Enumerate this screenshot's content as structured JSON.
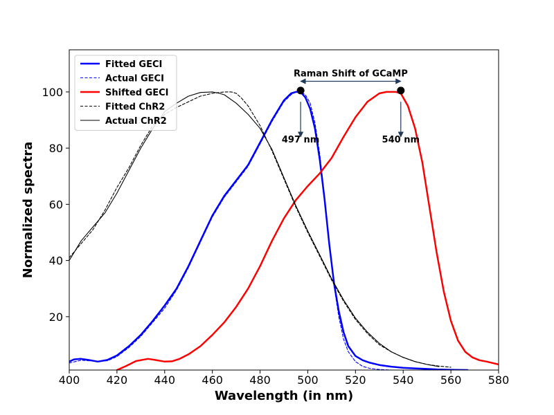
{
  "chart_data": {
    "type": "line",
    "title": "",
    "xlabel": "Wavelength (in nm)",
    "ylabel": "Normalized spectra",
    "xlim": [
      400,
      580
    ],
    "ylim": [
      1,
      115
    ],
    "x_ticks": [
      400,
      420,
      440,
      460,
      480,
      500,
      520,
      540,
      560,
      580
    ],
    "y_ticks": [
      20,
      40,
      60,
      80,
      100
    ],
    "grid": false,
    "legend_position": "top-left",
    "series": [
      {
        "name": "Fitted GECI",
        "color": "#0000ff",
        "style": "solid",
        "emphasis": "thick",
        "x": [
          400,
          402,
          405,
          408,
          412,
          416,
          420,
          425,
          430,
          435,
          440,
          445,
          450,
          455,
          460,
          465,
          470,
          475,
          480,
          485,
          490,
          493,
          495,
          497,
          499,
          501,
          503,
          505,
          507,
          509,
          511,
          513,
          515,
          517,
          520,
          523,
          526,
          530,
          535,
          540,
          545,
          550,
          555,
          560,
          567
        ],
        "y": [
          4,
          4.8,
          5,
          4.6,
          4,
          4.6,
          6.2,
          9.5,
          13.5,
          18.5,
          24,
          30,
          38,
          47,
          56,
          63,
          68.5,
          74,
          82,
          90,
          97,
          99.5,
          100,
          100,
          98,
          94,
          87,
          76,
          62,
          46,
          32,
          22,
          14.5,
          9.5,
          6,
          4.5,
          3.6,
          2.8,
          2.2,
          1.8,
          1.6,
          1.4,
          1.2,
          1.1,
          1
        ]
      },
      {
        "name": "Actual GECI",
        "color": "#0000ff",
        "style": "dashed",
        "emphasis": "thin",
        "x": [
          400,
          405,
          408,
          412,
          416,
          420,
          425,
          430,
          435,
          440,
          445,
          450,
          455,
          460,
          465,
          470,
          475,
          480,
          485,
          490,
          493,
          495,
          497,
          499,
          501,
          503,
          505,
          507,
          509,
          511,
          513,
          515,
          517,
          520,
          523,
          526,
          530,
          535
        ],
        "y": [
          3.5,
          4.5,
          4.3,
          4.1,
          4.3,
          5.8,
          9,
          13,
          18,
          23,
          29.5,
          37.5,
          46.5,
          55.5,
          62.5,
          68,
          73.5,
          81.5,
          89.5,
          96.5,
          99,
          100,
          100,
          99,
          96,
          89,
          78,
          63,
          46,
          31,
          20,
          12,
          7.5,
          4,
          2.3,
          1.6,
          1.2,
          1
        ]
      },
      {
        "name": "Shifted GECI",
        "color": "#ff0000",
        "style": "solid",
        "emphasis": "thick",
        "x": [
          420,
          424,
          428,
          433,
          436,
          440,
          443,
          446,
          450,
          455,
          460,
          465,
          470,
          475,
          480,
          485,
          490,
          495,
          500,
          505,
          510,
          515,
          520,
          525,
          530,
          533,
          535,
          537,
          539,
          540,
          542,
          545,
          548,
          551,
          554,
          557,
          560,
          563,
          566,
          569,
          572,
          575,
          580
        ],
        "y": [
          1,
          2.5,
          4.2,
          5,
          4.6,
          4,
          4.1,
          4.9,
          6.6,
          9.5,
          13.5,
          18,
          23.5,
          30,
          38,
          47,
          55,
          61.5,
          66.5,
          71,
          76.5,
          84,
          91,
          96.5,
          99.5,
          100,
          100,
          100,
          99.5,
          98,
          95,
          87,
          75,
          59,
          43,
          29,
          18.5,
          11.5,
          7.5,
          5.5,
          4.5,
          4,
          3
        ]
      },
      {
        "name": "Fitted ChR2",
        "color": "#000000",
        "style": "dashed",
        "emphasis": "thin",
        "x": [
          400,
          405,
          410,
          415,
          420,
          425,
          430,
          435,
          440,
          445,
          450,
          455,
          460,
          465,
          468,
          470,
          472,
          475,
          480,
          485,
          490,
          495,
          500,
          505,
          510,
          515,
          520,
          525,
          530,
          535,
          540,
          545,
          550,
          555,
          560
        ],
        "y": [
          41,
          46,
          51,
          58,
          66,
          73,
          81,
          88,
          92,
          94.5,
          96.5,
          98.5,
          99.5,
          100,
          100,
          99.5,
          98,
          95,
          88,
          79,
          69,
          59,
          50,
          41.5,
          33,
          25.5,
          19,
          14,
          10,
          7.5,
          5.5,
          4,
          3,
          2.4,
          2
        ]
      },
      {
        "name": "Actual ChR2",
        "color": "#000000",
        "style": "solid",
        "emphasis": "thin",
        "x": [
          400,
          405,
          410,
          415,
          420,
          425,
          430,
          435,
          440,
          445,
          450,
          455,
          460,
          463,
          465,
          470,
          475,
          480,
          485,
          490,
          495,
          500,
          505,
          510,
          515,
          520,
          525,
          530,
          535,
          540,
          545,
          550,
          555
        ],
        "y": [
          40,
          47,
          52,
          57,
          64,
          72,
          80,
          87,
          93,
          96,
          98.5,
          99.8,
          100,
          99.5,
          99,
          96,
          92,
          87,
          79.5,
          69.5,
          59.5,
          50.5,
          42,
          33.5,
          26,
          19.5,
          14.5,
          10.5,
          7.5,
          5.5,
          4,
          3,
          2.2
        ]
      }
    ],
    "markers": [
      {
        "x": 497,
        "y": 100.5,
        "color": "#000000"
      },
      {
        "x": 539,
        "y": 100.5,
        "color": "#000000"
      }
    ],
    "annotations": [
      {
        "text": "Raman Shift of GCaMP",
        "x": 518,
        "y": 105.5
      },
      {
        "text": "497 nm",
        "x": 497,
        "y": 82
      },
      {
        "text": "540 nm",
        "x": 539,
        "y": 82
      }
    ],
    "arrows": [
      {
        "kind": "double",
        "from": [
          497,
          103.8
        ],
        "to": [
          539,
          103.8
        ]
      },
      {
        "kind": "single",
        "from": [
          497,
          96.5
        ],
        "to": [
          497,
          84
        ]
      },
      {
        "kind": "single",
        "from": [
          539,
          96.5
        ],
        "to": [
          539,
          84
        ]
      }
    ]
  }
}
